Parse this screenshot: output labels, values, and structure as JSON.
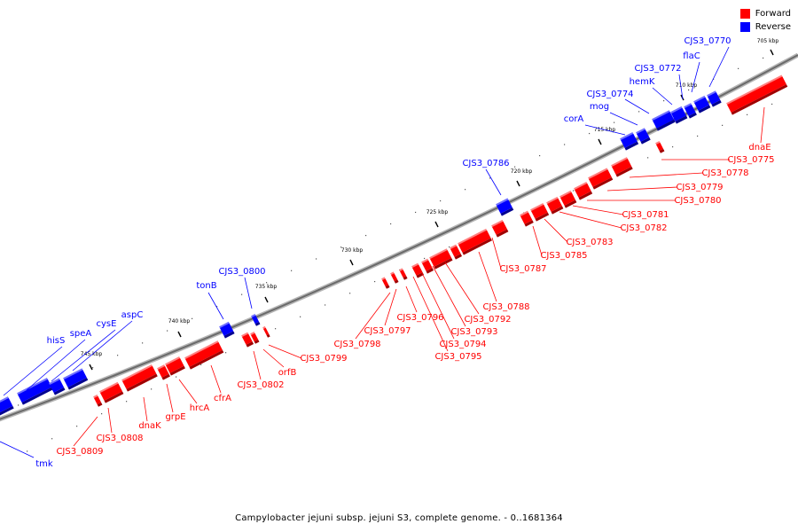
{
  "caption": "Campylobacter jejuni subsp. jejuni S3, complete genome. - 0..1681364",
  "legend": {
    "forward_label": "Forward",
    "reverse_label": "Reverse",
    "forward_color": "#ff0000",
    "reverse_color": "#0000ff"
  },
  "ticks": [
    "705 kbp",
    "710 kbp",
    "715 kbp",
    "720 kbp",
    "725 kbp",
    "730 kbp",
    "735 kbp",
    "740 kbp",
    "745 kbp"
  ],
  "reverse_gene_labels": [
    "CJS3_0770",
    "flaC",
    "CJS3_0772",
    "hemK",
    "CJS3_0774",
    "mog",
    "corA",
    "CJS3_0786",
    "CJS3_0800",
    "tonB",
    "aspC",
    "cysE",
    "speA",
    "hisS",
    "tmk"
  ],
  "forward_gene_labels": [
    "dnaE",
    "CJS3_0775",
    "CJS3_0778",
    "CJS3_0779",
    "CJS3_0780",
    "CJS3_0781",
    "CJS3_0782",
    "CJS3_0783",
    "CJS3_0785",
    "CJS3_0787",
    "CJS3_0788",
    "CJS3_0792",
    "CJS3_0793",
    "CJS3_0794",
    "CJS3_0795",
    "CJS3_0796",
    "CJS3_0797",
    "CJS3_0798",
    "CJS3_0799",
    "orfB",
    "CJS3_0802",
    "cfrA",
    "hrcA",
    "grpE",
    "dnaK",
    "CJS3_0808",
    "CJS3_0809"
  ]
}
